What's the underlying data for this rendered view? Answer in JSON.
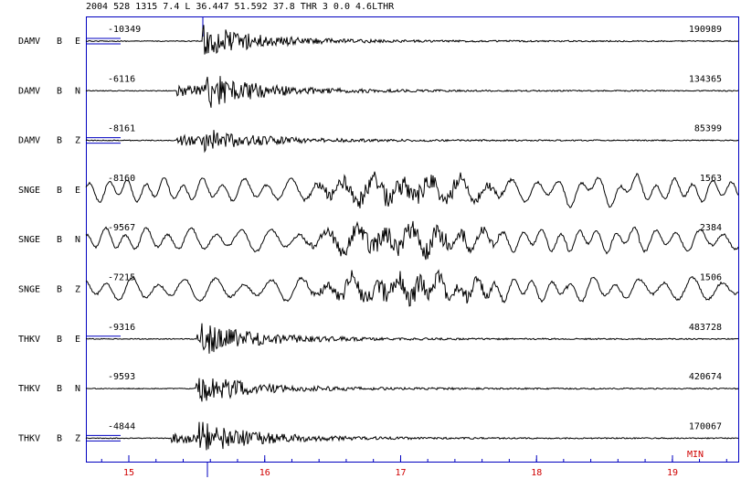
{
  "header": "2004   528 1315   7.4 L   36.447   51.592 37.8   THR   3 0.0 4.6LTHR",
  "traces": [
    {
      "station": "DAMV",
      "band": "B",
      "component": "E",
      "min": -10349,
      "max": 190989
    },
    {
      "station": "DAMV",
      "band": "B",
      "component": "N",
      "min": -6116,
      "max": 134365
    },
    {
      "station": "DAMV",
      "band": "B",
      "component": "Z",
      "min": -8161,
      "max": 85399
    },
    {
      "station": "SNGE",
      "band": "B",
      "component": "E",
      "min": -8160,
      "max": 1563
    },
    {
      "station": "SNGE",
      "band": "B",
      "component": "N",
      "min": -9567,
      "max": 2384
    },
    {
      "station": "SNGE",
      "band": "B",
      "component": "Z",
      "min": -7215,
      "max": 1506
    },
    {
      "station": "THKV",
      "band": "B",
      "component": "E",
      "min": -9316,
      "max": 483728
    },
    {
      "station": "THKV",
      "band": "B",
      "component": "N",
      "min": -9593,
      "max": 420674
    },
    {
      "station": "THKV",
      "band": "B",
      "component": "Z",
      "min": -4844,
      "max": 170067
    }
  ],
  "x_axis": {
    "xlim": [
      14.684,
      19.484
    ],
    "xticks": [
      15,
      16,
      17,
      18,
      19
    ],
    "unit": "MIN"
  }
}
